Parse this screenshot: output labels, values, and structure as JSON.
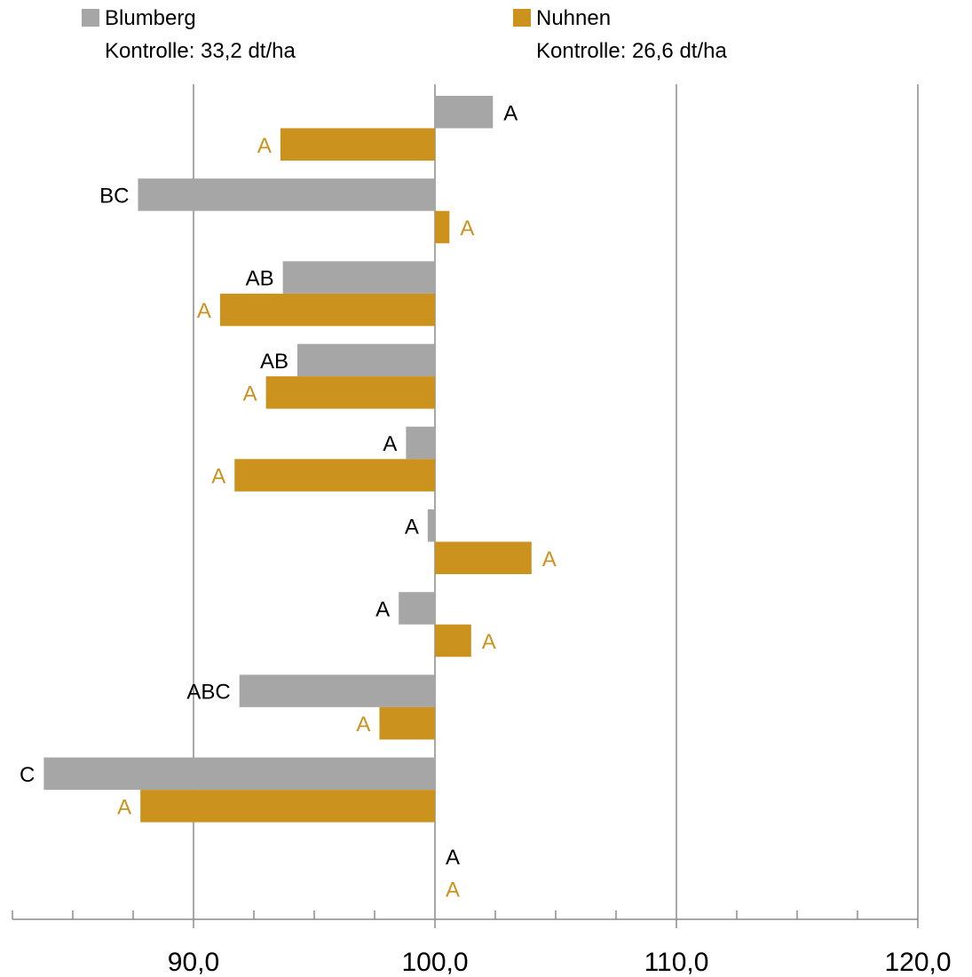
{
  "chart_data": {
    "type": "bar",
    "orientation": "horizontal",
    "title": "",
    "xlabel": "",
    "ylabel": "",
    "xlim": [
      82.5,
      120
    ],
    "x_ticks": [
      90,
      100,
      110,
      120
    ],
    "x_tick_labels": [
      "90,0",
      "100,0",
      "110,0",
      "120,0"
    ],
    "x_minor_step": 2.5,
    "baseline": 100,
    "grid": "vertical-major",
    "legend": {
      "placement": "top",
      "items": [
        {
          "name": "Blumberg",
          "note": "Kontrolle: 33,2 dt/ha",
          "color": "#a6a6a6"
        },
        {
          "name": "Nuhnen",
          "note": "Kontrolle: 26,6 dt/ha",
          "color": "#cc921e"
        }
      ]
    },
    "categories_count": 10,
    "series": [
      {
        "name": "Blumberg",
        "color": "#a6a6a6",
        "label_color": "#000000",
        "values": [
          102.4,
          87.7,
          93.7,
          94.3,
          98.8,
          99.7,
          98.5,
          91.9,
          83.8,
          100
        ],
        "labels": [
          "A",
          "BC",
          "AB",
          "AB",
          "A",
          "A",
          "A",
          "ABC",
          "C",
          "A"
        ]
      },
      {
        "name": "Nuhnen",
        "color": "#cc921e",
        "label_color": "#cc921e",
        "values": [
          93.6,
          100.6,
          91.1,
          93.0,
          91.7,
          104.0,
          101.5,
          97.7,
          87.8,
          100
        ],
        "labels": [
          "A",
          "A",
          "A",
          "A",
          "A",
          "A",
          "A",
          "A",
          "A",
          "A"
        ]
      }
    ]
  }
}
